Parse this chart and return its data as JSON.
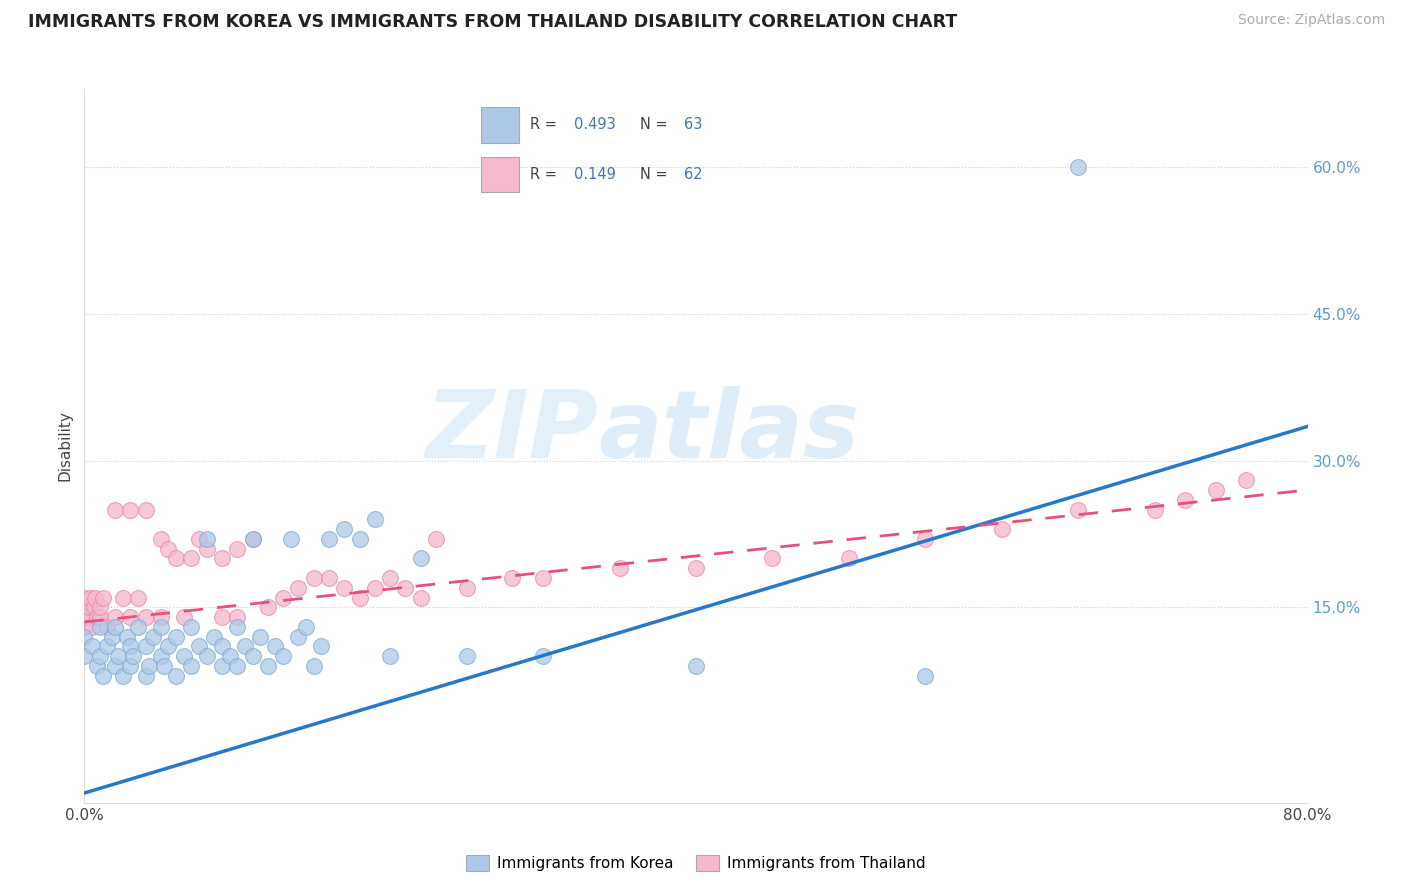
{
  "title": "IMMIGRANTS FROM KOREA VS IMMIGRANTS FROM THAILAND DISABILITY CORRELATION CHART",
  "source": "Source: ZipAtlas.com",
  "ylabel": "Disability",
  "xlim": [
    0.0,
    0.8
  ],
  "ylim": [
    -0.05,
    0.68
  ],
  "ytick_positions": [
    0.15,
    0.3,
    0.45,
    0.6
  ],
  "ytick_labels": [
    "15.0%",
    "30.0%",
    "45.0%",
    "60.0%"
  ],
  "korea_R": "0.493",
  "korea_N": "63",
  "thailand_R": "0.149",
  "thailand_N": "62",
  "korea_color": "#adc8e8",
  "korea_edge_color": "#7aadd4",
  "korea_line_color": "#2878c8",
  "thailand_color": "#f5b8cc",
  "thailand_edge_color": "#e888aa",
  "thailand_line_color": "#e8507a",
  "watermark_zip": "ZIP",
  "watermark_atlas": "atlas",
  "legend_R_color": "#4472c4",
  "legend_N_color": "#4472c4",
  "korea_scatter_x": [
    0.0,
    0.0,
    0.005,
    0.008,
    0.01,
    0.01,
    0.012,
    0.015,
    0.018,
    0.02,
    0.02,
    0.022,
    0.025,
    0.028,
    0.03,
    0.03,
    0.032,
    0.035,
    0.04,
    0.04,
    0.042,
    0.045,
    0.05,
    0.05,
    0.052,
    0.055,
    0.06,
    0.06,
    0.065,
    0.07,
    0.07,
    0.075,
    0.08,
    0.08,
    0.085,
    0.09,
    0.09,
    0.095,
    0.1,
    0.1,
    0.105,
    0.11,
    0.11,
    0.115,
    0.12,
    0.125,
    0.13,
    0.135,
    0.14,
    0.145,
    0.15,
    0.155,
    0.16,
    0.17,
    0.18,
    0.19,
    0.2,
    0.22,
    0.25,
    0.3,
    0.4,
    0.55,
    0.65
  ],
  "korea_scatter_y": [
    0.1,
    0.12,
    0.11,
    0.09,
    0.13,
    0.1,
    0.08,
    0.11,
    0.12,
    0.09,
    0.13,
    0.1,
    0.08,
    0.12,
    0.09,
    0.11,
    0.1,
    0.13,
    0.08,
    0.11,
    0.09,
    0.12,
    0.1,
    0.13,
    0.09,
    0.11,
    0.08,
    0.12,
    0.1,
    0.09,
    0.13,
    0.11,
    0.1,
    0.22,
    0.12,
    0.09,
    0.11,
    0.1,
    0.13,
    0.09,
    0.11,
    0.1,
    0.22,
    0.12,
    0.09,
    0.11,
    0.1,
    0.22,
    0.12,
    0.13,
    0.09,
    0.11,
    0.22,
    0.23,
    0.22,
    0.24,
    0.1,
    0.2,
    0.1,
    0.1,
    0.09,
    0.08,
    0.6
  ],
  "thailand_scatter_x": [
    0.0,
    0.0,
    0.0,
    0.0,
    0.002,
    0.003,
    0.004,
    0.005,
    0.006,
    0.007,
    0.008,
    0.01,
    0.01,
    0.012,
    0.015,
    0.02,
    0.02,
    0.025,
    0.03,
    0.03,
    0.035,
    0.04,
    0.04,
    0.05,
    0.05,
    0.055,
    0.06,
    0.065,
    0.07,
    0.075,
    0.08,
    0.09,
    0.09,
    0.1,
    0.1,
    0.11,
    0.12,
    0.13,
    0.14,
    0.15,
    0.16,
    0.17,
    0.18,
    0.19,
    0.2,
    0.21,
    0.22,
    0.23,
    0.25,
    0.28,
    0.3,
    0.35,
    0.4,
    0.45,
    0.5,
    0.55,
    0.6,
    0.65,
    0.7,
    0.72,
    0.74,
    0.76
  ],
  "thailand_scatter_y": [
    0.13,
    0.14,
    0.15,
    0.16,
    0.14,
    0.15,
    0.16,
    0.13,
    0.15,
    0.16,
    0.14,
    0.14,
    0.15,
    0.16,
    0.13,
    0.25,
    0.14,
    0.16,
    0.25,
    0.14,
    0.16,
    0.25,
    0.14,
    0.22,
    0.14,
    0.21,
    0.2,
    0.14,
    0.2,
    0.22,
    0.21,
    0.14,
    0.2,
    0.21,
    0.14,
    0.22,
    0.15,
    0.16,
    0.17,
    0.18,
    0.18,
    0.17,
    0.16,
    0.17,
    0.18,
    0.17,
    0.16,
    0.22,
    0.17,
    0.18,
    0.18,
    0.19,
    0.19,
    0.2,
    0.2,
    0.22,
    0.23,
    0.25,
    0.25,
    0.26,
    0.27,
    0.28
  ],
  "korea_line_x": [
    0.0,
    0.8
  ],
  "korea_line_y": [
    -0.04,
    0.335
  ],
  "thailand_line_x": [
    0.0,
    0.8
  ],
  "thailand_line_y": [
    0.135,
    0.27
  ]
}
